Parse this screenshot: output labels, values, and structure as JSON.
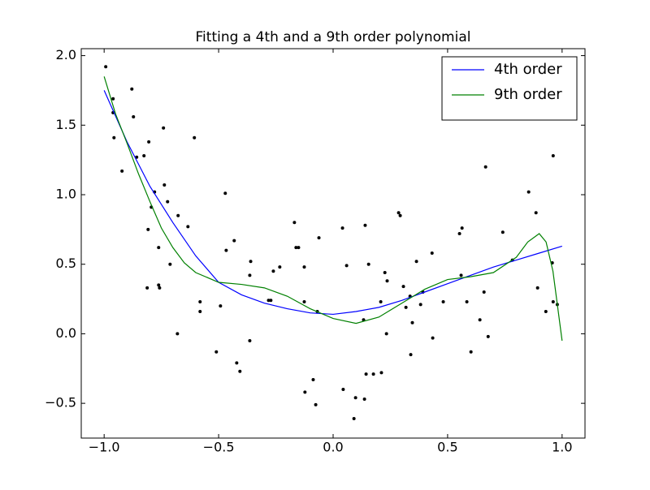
{
  "chart_data": {
    "type": "line",
    "title": "Fitting a 4th and a 9th order polynomial",
    "xlim": [
      -1.1,
      1.1
    ],
    "ylim": [
      -0.75,
      2.05
    ],
    "xticks": [
      {
        "value": -1.0,
        "label": "−1.0"
      },
      {
        "value": -0.5,
        "label": "−0.5"
      },
      {
        "value": 0,
        "label": "0.0"
      },
      0.5,
      {
        "value": 1,
        "label": "1.0"
      }
    ],
    "yticks": [
      {
        "value": -0.5,
        "label": "−0.5"
      },
      {
        "value": 0,
        "label": "0.0"
      },
      0.5,
      {
        "value": 1,
        "label": "1.0"
      },
      1.5,
      {
        "value": 2,
        "label": "2.0"
      }
    ],
    "legend": "upper right",
    "series": [
      {
        "style": "scatter",
        "color": "#000000",
        "x": [
          -0.993,
          -0.961,
          -0.961,
          -0.957,
          -0.922,
          -0.879,
          -0.872,
          -0.858,
          -0.826,
          -0.805,
          -0.808,
          -0.812,
          -0.794,
          -0.78,
          -0.762,
          -0.762,
          -0.758,
          -0.741,
          -0.737,
          -0.723,
          -0.712,
          -0.68,
          -0.677,
          -0.634,
          -0.606,
          -0.581,
          -0.581,
          -0.51,
          -0.492,
          -0.471,
          -0.467,
          -0.432,
          -0.421,
          -0.407,
          -0.364,
          -0.36,
          -0.364,
          -0.282,
          -0.272,
          -0.261,
          -0.233,
          -0.169,
          -0.162,
          -0.151,
          -0.126,
          -0.126,
          -0.123,
          -0.087,
          -0.076,
          -0.069,
          -0.062,
          0.041,
          0.044,
          0.059,
          0.091,
          0.098,
          0.133,
          0.137,
          0.14,
          0.144,
          0.155,
          0.176,
          0.208,
          0.211,
          0.226,
          0.233,
          0.236,
          0.286,
          0.293,
          0.307,
          0.318,
          0.336,
          0.339,
          0.346,
          0.364,
          0.382,
          0.392,
          0.432,
          0.435,
          0.481,
          0.552,
          0.563,
          0.559,
          0.584,
          0.602,
          0.641,
          0.659,
          0.666,
          0.677,
          0.741,
          0.783,
          0.854,
          0.886,
          0.893,
          0.929,
          0.957,
          0.961,
          0.961,
          0.979
        ],
        "values": [
          1.92,
          1.69,
          1.59,
          1.41,
          1.17,
          1.76,
          1.56,
          1.27,
          1.28,
          1.38,
          0.75,
          0.33,
          0.91,
          1.02,
          0.62,
          0.35,
          0.33,
          1.48,
          1.07,
          0.95,
          0.5,
          0,
          0.85,
          0.77,
          1.41,
          0.23,
          0.16,
          -0.13,
          0.2,
          1.01,
          0.6,
          0.67,
          -0.21,
          -0.27,
          0.42,
          0.52,
          -0.05,
          0.24,
          0.24,
          0.45,
          0.48,
          0.8,
          0.62,
          0.62,
          0.48,
          0.23,
          -0.42,
          -0.33,
          -0.51,
          0.16,
          0.69,
          0.76,
          -0.4,
          0.49,
          -0.61,
          -0.46,
          0.1,
          -0.47,
          0.78,
          -0.29,
          0.5,
          -0.29,
          0.23,
          -0.28,
          0.44,
          0,
          0.38,
          0.87,
          0.85,
          0.34,
          0.19,
          0.27,
          -0.15,
          0.08,
          0.52,
          0.21,
          0.3,
          0.58,
          -0.03,
          0.23,
          0.72,
          0.76,
          0.42,
          0.23,
          -0.13,
          0.1,
          0.3,
          1.2,
          -0.02,
          0.73,
          0.53,
          1.02,
          0.87,
          0.33,
          0.16,
          0.51,
          1.28,
          0.23,
          0.21
        ]
      },
      {
        "name": "4th order",
        "style": "line",
        "color": "#0000ff",
        "x": [
          -1,
          -0.9,
          -0.8,
          -0.7,
          -0.6,
          -0.5,
          -0.4,
          -0.3,
          -0.2,
          -0.1,
          0,
          0.1,
          0.2,
          0.3,
          0.4,
          0.5,
          0.6,
          0.7,
          0.8,
          0.9,
          1
        ],
        "values": [
          1.75,
          1.38,
          1.06,
          0.8,
          0.56,
          0.37,
          0.28,
          0.22,
          0.18,
          0.15,
          0.14,
          0.16,
          0.19,
          0.24,
          0.3,
          0.36,
          0.42,
          0.48,
          0.53,
          0.58,
          0.63
        ]
      },
      {
        "name": "9th order",
        "style": "line",
        "color": "#008000",
        "x": [
          -1,
          -0.95,
          -0.9,
          -0.85,
          -0.8,
          -0.75,
          -0.7,
          -0.65,
          -0.6,
          -0.5,
          -0.4,
          -0.3,
          -0.2,
          -0.1,
          0,
          0.1,
          0.2,
          0.3,
          0.4,
          0.5,
          0.6,
          0.7,
          0.8,
          0.85,
          0.9,
          0.93,
          0.96,
          1
        ],
        "values": [
          1.85,
          1.58,
          1.37,
          1.15,
          0.95,
          0.76,
          0.62,
          0.51,
          0.44,
          0.37,
          0.355,
          0.33,
          0.27,
          0.18,
          0.11,
          0.075,
          0.12,
          0.22,
          0.32,
          0.39,
          0.41,
          0.44,
          0.55,
          0.66,
          0.72,
          0.66,
          0.45,
          -0.05
        ]
      }
    ]
  }
}
